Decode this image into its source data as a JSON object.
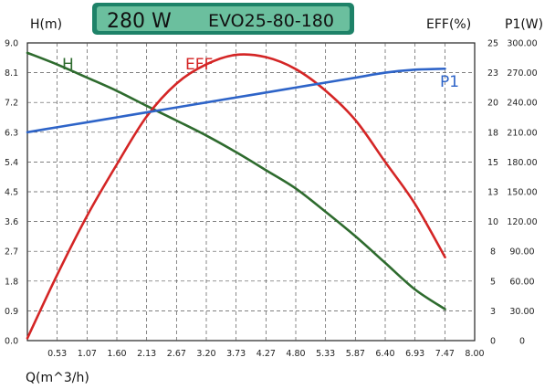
{
  "chart_data": {
    "type": "line",
    "title": {
      "power": "280 W",
      "model": "EVO25-80-180"
    },
    "xlabel": "Q(m^3/h)",
    "xlim": [
      0,
      8.0
    ],
    "x_ticks": [
      "0.53",
      "1.07",
      "1.60",
      "2.13",
      "2.67",
      "3.20",
      "3.73",
      "4.27",
      "4.80",
      "5.33",
      "5.87",
      "6.40",
      "6.93",
      "7.47",
      "8.00"
    ],
    "y_axes": {
      "head": {
        "label": "H(m)",
        "ylim": [
          0,
          9.0
        ],
        "ticks": [
          "0.0",
          "0.9",
          "1.8",
          "2.7",
          "3.6",
          "4.5",
          "5.4",
          "6.3",
          "7.2",
          "8.1",
          "9.0"
        ]
      },
      "eff": {
        "label": "EFF(%)",
        "ylim": [
          0,
          25
        ],
        "ticks": [
          "0",
          "3",
          "5",
          "8",
          "10",
          "13",
          "15",
          "18",
          "20",
          "23",
          "25"
        ]
      },
      "power": {
        "label": "P1(W)",
        "ylim": [
          0,
          300
        ],
        "ticks": [
          "0",
          "30.00",
          "60.00",
          "90.00",
          "120.00",
          "150.00",
          "180.00",
          "210.00",
          "240.00",
          "270.00",
          "300.00"
        ]
      }
    },
    "grid": true,
    "series": [
      {
        "name": "H",
        "axis": "head",
        "color": "#2e6b2e",
        "x": [
          0,
          0.53,
          1.07,
          1.6,
          2.13,
          2.67,
          3.2,
          3.73,
          4.27,
          4.8,
          5.33,
          5.87,
          6.4,
          6.93,
          7.47
        ],
        "y": [
          8.7,
          8.35,
          7.95,
          7.55,
          7.1,
          6.65,
          6.2,
          5.7,
          5.15,
          4.6,
          3.9,
          3.15,
          2.35,
          1.55,
          0.95
        ]
      },
      {
        "name": "EFF",
        "axis": "eff",
        "color": "#d42525",
        "x": [
          0,
          0.53,
          1.07,
          1.6,
          2.13,
          2.67,
          3.2,
          3.73,
          4.27,
          4.8,
          5.33,
          5.87,
          6.4,
          6.93,
          7.47
        ],
        "y": [
          0.2,
          5.5,
          10.5,
          14.8,
          18.8,
          21.6,
          23.2,
          24.0,
          23.8,
          22.8,
          21.0,
          18.5,
          15.0,
          11.5,
          7.0
        ]
      },
      {
        "name": "P1",
        "axis": "power",
        "color": "#2e64c8",
        "x": [
          0,
          0.53,
          1.07,
          1.6,
          2.13,
          2.67,
          3.2,
          3.73,
          4.27,
          4.8,
          5.33,
          5.87,
          6.4,
          6.93,
          7.47
        ],
        "y": [
          210,
          215,
          220,
          225,
          230,
          235,
          240,
          245,
          250,
          255,
          260,
          265,
          270,
          273,
          274
        ]
      }
    ]
  }
}
